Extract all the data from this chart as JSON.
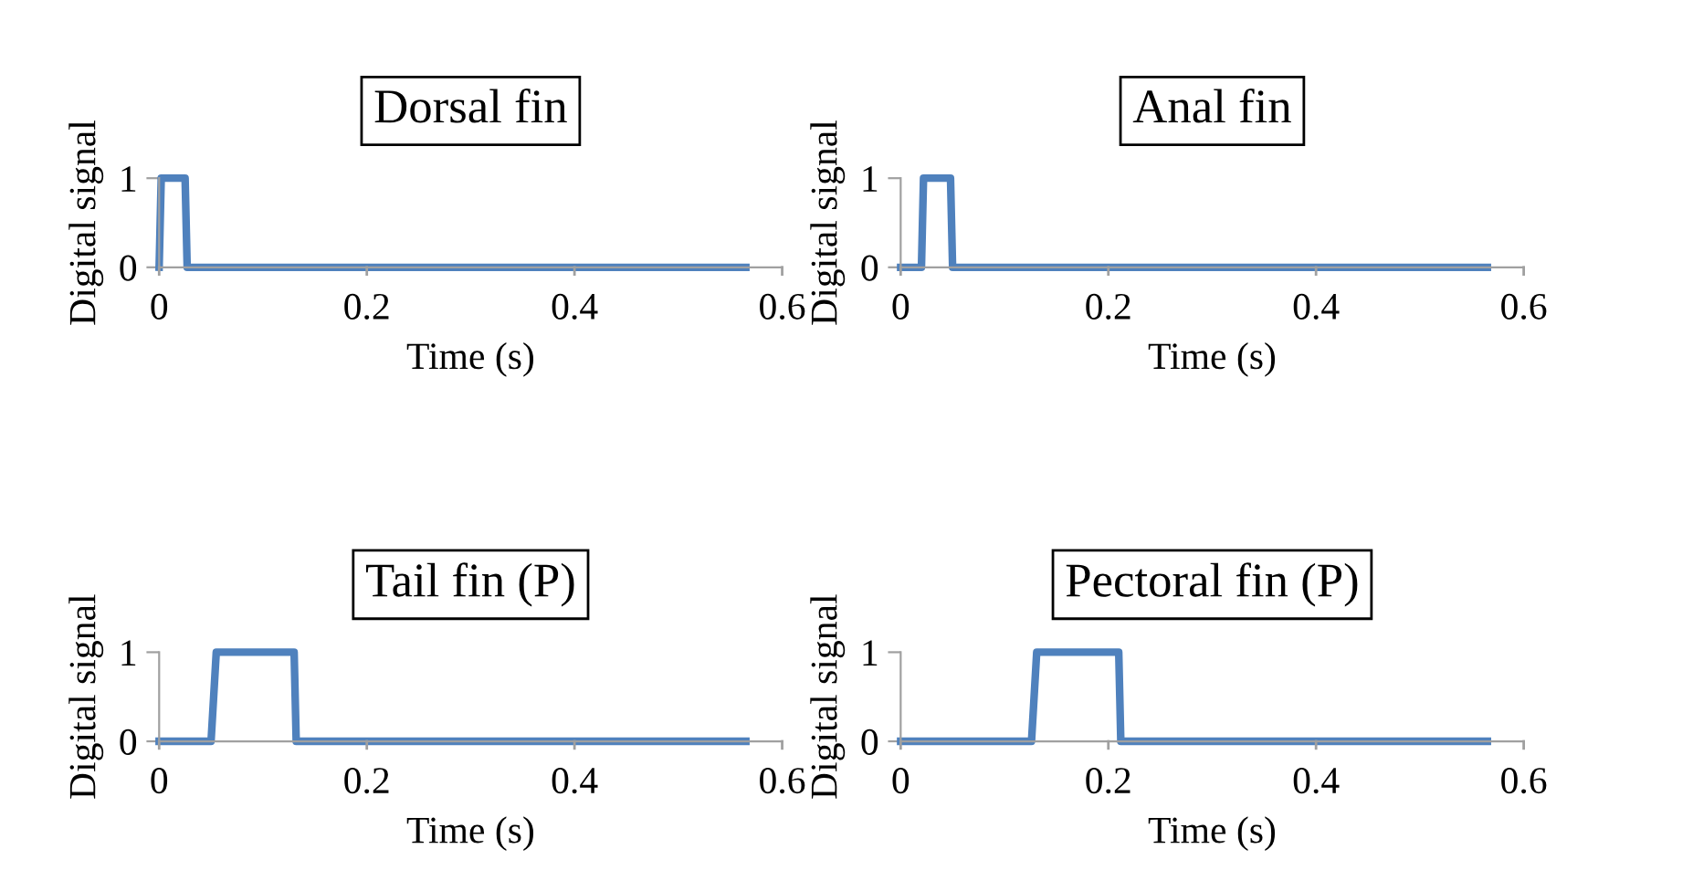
{
  "chart_data": [
    {
      "type": "line",
      "title": "Dorsal fin",
      "xlabel": "Time (s)",
      "ylabel": "Digital signal",
      "x": [
        0,
        0.002,
        0.025,
        0.027,
        0.565
      ],
      "series": [
        {
          "color": "#4f81bd",
          "values": [
            0,
            1,
            1,
            0,
            0
          ]
        }
      ],
      "xlim": [
        0,
        0.6
      ],
      "xticks": [
        0,
        0.2,
        0.4,
        0.6
      ],
      "ylim": [
        0,
        1
      ],
      "yticks": [
        0,
        1
      ],
      "grid": false,
      "legend": false
    },
    {
      "type": "line",
      "title": "Anal fin",
      "xlabel": "Time (s)",
      "ylabel": "Digital signal",
      "x": [
        0,
        0.02,
        0.022,
        0.048,
        0.05,
        0.565
      ],
      "series": [
        {
          "color": "#4f81bd",
          "values": [
            0,
            0,
            1,
            1,
            0,
            0
          ]
        }
      ],
      "xlim": [
        0,
        0.6
      ],
      "xticks": [
        0,
        0.2,
        0.4,
        0.6
      ],
      "ylim": [
        0,
        1
      ],
      "yticks": [
        0,
        1
      ],
      "grid": false,
      "legend": false
    },
    {
      "type": "line",
      "title": "Tail fin (P)",
      "xlabel": "Time (s)",
      "ylabel": "Digital signal",
      "x": [
        0,
        0.05,
        0.055,
        0.13,
        0.132,
        0.565
      ],
      "series": [
        {
          "color": "#4f81bd",
          "values": [
            0,
            0,
            1,
            1,
            0,
            0
          ]
        }
      ],
      "xlim": [
        0,
        0.6
      ],
      "xticks": [
        0,
        0.2,
        0.4,
        0.6
      ],
      "ylim": [
        0,
        1
      ],
      "yticks": [
        0,
        1
      ],
      "grid": false,
      "legend": false
    },
    {
      "type": "line",
      "title": "Pectoral fin (P)",
      "xlabel": "Time (s)",
      "ylabel": "Digital signal",
      "x": [
        0,
        0.126,
        0.131,
        0.21,
        0.212,
        0.565
      ],
      "series": [
        {
          "color": "#4f81bd",
          "values": [
            0,
            0,
            1,
            1,
            0,
            0
          ]
        }
      ],
      "xlim": [
        0,
        0.6
      ],
      "xticks": [
        0,
        0.2,
        0.4,
        0.6
      ],
      "ylim": [
        0,
        1
      ],
      "yticks": [
        0,
        1
      ],
      "grid": false,
      "legend": false
    }
  ]
}
